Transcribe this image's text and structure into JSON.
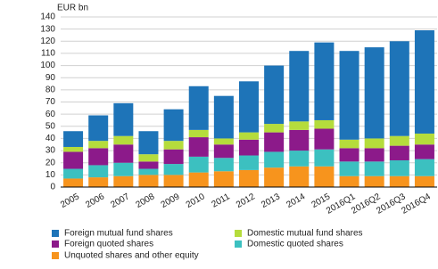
{
  "chart_data": {
    "type": "stacked-bar",
    "y_label": "EUR bn",
    "categories": [
      "2005",
      "2006",
      "2007",
      "2008",
      "2009",
      "2010",
      "2011",
      "2012",
      "2013",
      "2014",
      "2015",
      "2016Q1",
      "2016Q2",
      "2016Q3",
      "2016Q4"
    ],
    "series": [
      {
        "name": "Unquoted shares and other equity",
        "color": "#f7941d",
        "values": [
          7,
          8,
          9,
          10,
          10,
          12,
          13,
          14,
          16,
          17,
          17,
          9,
          9,
          9,
          9
        ]
      },
      {
        "name": "Domestic quoted shares",
        "color": "#3cc0c0",
        "values": [
          8,
          10,
          11,
          5,
          9,
          13,
          11,
          12,
          13,
          13,
          14,
          12,
          12,
          13,
          14
        ]
      },
      {
        "name": "Foreign quoted shares",
        "color": "#8c1a8a",
        "values": [
          14,
          14,
          15,
          6,
          12,
          16,
          11,
          13,
          16,
          17,
          17,
          11,
          11,
          12,
          12
        ]
      },
      {
        "name": "Domestic mutual fund shares",
        "color": "#b5dc3c",
        "values": [
          4,
          6,
          7,
          6,
          7,
          6,
          5,
          6,
          7,
          7,
          7,
          7,
          8,
          8,
          9
        ]
      },
      {
        "name": "Foreign mutual fund shares",
        "color": "#1e74b8",
        "values": [
          13,
          21,
          27,
          19,
          26,
          36,
          35,
          42,
          48,
          58,
          64,
          73,
          75,
          78,
          85
        ]
      }
    ],
    "ylim": [
      0,
      140
    ],
    "yticks": [
      0,
      10,
      20,
      30,
      40,
      50,
      60,
      70,
      80,
      90,
      100,
      110,
      120,
      130,
      140
    ],
    "grid": true
  }
}
